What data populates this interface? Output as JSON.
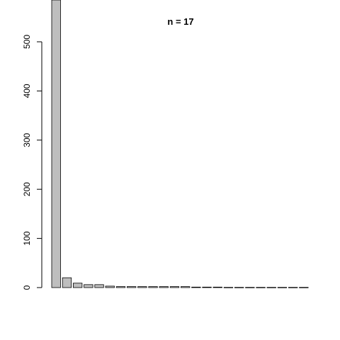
{
  "chart_data": {
    "type": "bar",
    "title": "n =  17",
    "xlabel": "",
    "ylabel": "",
    "ylim": [
      0,
      580
    ],
    "yticks": [
      0,
      100,
      200,
      300,
      400,
      500
    ],
    "values": [
      600,
      20,
      9,
      6,
      6,
      3,
      2,
      2,
      2,
      2,
      2,
      2,
      2,
      1,
      1,
      1,
      0.5,
      0.5,
      0.5,
      0.5,
      0.5,
      0.5,
      0.5,
      0.5
    ],
    "bar_color": "#bebebe",
    "border_color": "#000000",
    "grid": false
  }
}
